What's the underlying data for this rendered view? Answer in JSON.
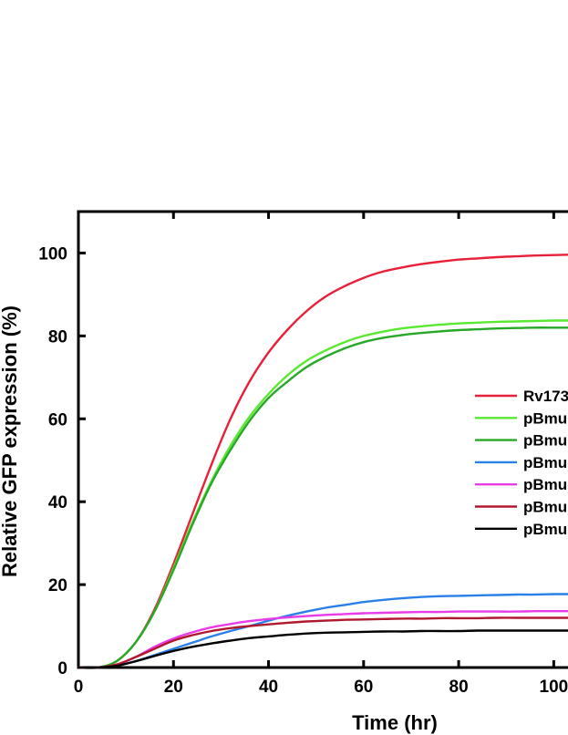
{
  "chart_data": {
    "type": "line",
    "title": "",
    "xlabel": "Time (hr)",
    "ylabel": "Relative GFP expression (%)",
    "xlim": [
      0,
      103
    ],
    "ylim": [
      0,
      110
    ],
    "xticks": [
      0,
      20,
      40,
      60,
      80,
      100
    ],
    "xtick_labels": [
      "0",
      "20",
      "40",
      "60",
      "80",
      "100"
    ],
    "yticks": [
      0,
      20,
      40,
      60,
      80,
      100
    ],
    "ytick_labels": [
      "0",
      "20",
      "40",
      "60",
      "80",
      "100"
    ],
    "grid": false,
    "legend_position": "right",
    "x": [
      0,
      4,
      8,
      12,
      16,
      20,
      24,
      28,
      32,
      36,
      40,
      44,
      48,
      52,
      56,
      60,
      64,
      68,
      72,
      76,
      80,
      84,
      88,
      92,
      96,
      100,
      103
    ],
    "series": [
      {
        "name": "Rv173",
        "color": "#e8203a",
        "values": [
          0,
          0,
          1.5,
          6,
          14,
          25,
          37,
          49,
          60,
          69,
          76,
          81.5,
          86,
          89.5,
          92,
          94,
          95.5,
          96.5,
          97.3,
          97.9,
          98.4,
          98.7,
          99,
          99.2,
          99.4,
          99.5,
          99.6
        ]
      },
      {
        "name": "pBmu",
        "color": "#5ae832",
        "values": [
          0,
          0,
          1.5,
          6,
          13.5,
          24,
          35,
          45,
          53.5,
          60.5,
          66,
          70.5,
          74,
          76.5,
          78.5,
          80,
          81,
          81.8,
          82.3,
          82.7,
          83,
          83.2,
          83.4,
          83.5,
          83.6,
          83.7,
          83.7
        ]
      },
      {
        "name": "pBmu",
        "color": "#28a828",
        "values": [
          0,
          0,
          1.5,
          6,
          13.5,
          23.5,
          34.5,
          44.5,
          52.5,
          59.5,
          65,
          69,
          72.5,
          75,
          77,
          78.5,
          79.5,
          80.2,
          80.7,
          81.1,
          81.4,
          81.6,
          81.8,
          81.9,
          82,
          82,
          82
        ]
      },
      {
        "name": "pBmu",
        "color": "#2b80e8",
        "values": [
          0,
          0,
          0.5,
          1.5,
          3,
          4.5,
          6,
          7.5,
          8.8,
          10,
          11.3,
          12.5,
          13.5,
          14.4,
          15.1,
          15.8,
          16.3,
          16.7,
          17,
          17.2,
          17.3,
          17.4,
          17.5,
          17.6,
          17.6,
          17.7,
          17.7
        ]
      },
      {
        "name": "pBmu",
        "color": "#e83ce8",
        "values": [
          0,
          0,
          0.7,
          2.5,
          5,
          7,
          8.5,
          9.7,
          10.5,
          11.2,
          11.7,
          12.1,
          12.4,
          12.7,
          12.9,
          13.1,
          13.2,
          13.3,
          13.4,
          13.4,
          13.5,
          13.5,
          13.5,
          13.5,
          13.6,
          13.6,
          13.6
        ]
      },
      {
        "name": "pBmu",
        "color": "#b01830",
        "values": [
          0,
          0,
          0.7,
          2.5,
          4.5,
          6.5,
          7.8,
          8.8,
          9.5,
          10,
          10.4,
          10.8,
          11.1,
          11.3,
          11.5,
          11.6,
          11.7,
          11.8,
          11.8,
          11.9,
          11.9,
          11.9,
          12,
          12,
          12,
          12,
          12
        ]
      },
      {
        "name": "pBmu",
        "color": "#000000",
        "values": [
          0,
          0,
          0.4,
          1.5,
          2.8,
          4,
          5,
          5.8,
          6.5,
          7.1,
          7.5,
          7.9,
          8.2,
          8.4,
          8.5,
          8.6,
          8.7,
          8.7,
          8.8,
          8.8,
          8.8,
          8.9,
          8.9,
          8.9,
          8.9,
          8.9,
          8.9
        ]
      }
    ]
  }
}
